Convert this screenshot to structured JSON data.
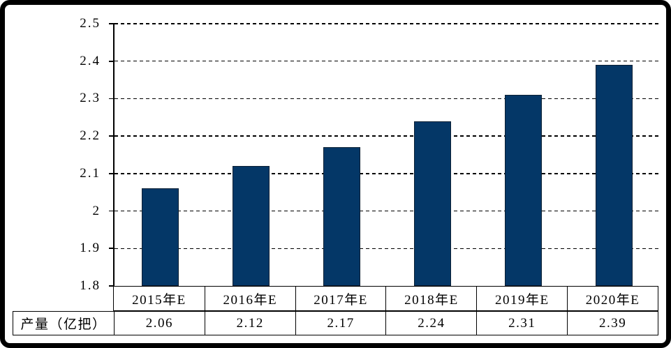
{
  "chart_data": {
    "type": "bar",
    "categories": [
      "2015年E",
      "2016年E",
      "2017年E",
      "2018年E",
      "2019年E",
      "2020年E"
    ],
    "values": [
      2.06,
      2.12,
      2.17,
      2.24,
      2.31,
      2.39
    ],
    "value_labels": [
      "2.06",
      "2.12",
      "2.17",
      "2.24",
      "2.31",
      "2.39"
    ],
    "series_name": "产量（亿把）",
    "title": "",
    "xlabel": "",
    "ylabel": "",
    "yticks": [
      "2.5",
      "2.4",
      "2.3",
      "2.2",
      "2.1",
      "2",
      "1.9",
      "1.8"
    ],
    "ylim": [
      1.8,
      2.5
    ],
    "grid": "horizontal-dashed",
    "legend_position": "none",
    "bar_color": "#043767",
    "bar_border_color": "#0a1f33"
  },
  "table": {
    "row_header": "产量（亿把）",
    "category_row": [
      "2015年E",
      "2016年E",
      "2017年E",
      "2018年E",
      "2019年E",
      "2020年E"
    ],
    "value_row": [
      "2.06",
      "2.12",
      "2.17",
      "2.24",
      "2.31",
      "2.39"
    ]
  },
  "frame": {
    "border_color": "#000000",
    "background_color": "#ffffff"
  }
}
